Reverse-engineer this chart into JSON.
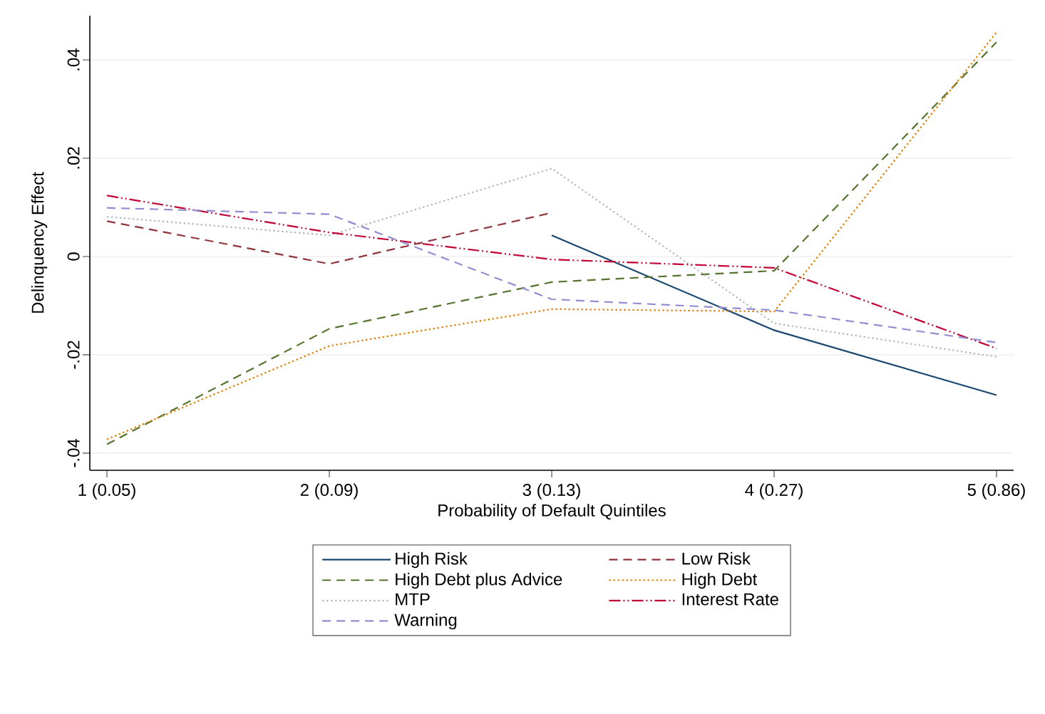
{
  "chart_data": {
    "type": "line",
    "xlabel": "Probability of Default Quintiles",
    "ylabel": "Delinquency Effect",
    "categories": [
      "1 (0.05)",
      "2 (0.09)",
      "3 (0.13)",
      "4 (0.27)",
      "5 (0.86)"
    ],
    "ylim": [
      -0.0435,
      0.049
    ],
    "yticks": [
      {
        "value": -0.04,
        "label": "-.04"
      },
      {
        "value": -0.02,
        "label": "-.02"
      },
      0,
      {
        "value": 0.02,
        "label": ".02"
      },
      {
        "value": 0.04,
        "label": ".04"
      }
    ],
    "grid": "y",
    "legend": "bottom",
    "marker": "none",
    "series": [
      {
        "name": "High Risk",
        "color": "#1a476f",
        "line_style": "solid",
        "values": [
          null,
          null,
          0.0043,
          -0.015,
          -0.0282
        ]
      },
      {
        "name": "Low Risk",
        "color": "#90353b",
        "line_style": "dashed",
        "values": [
          0.0072,
          -0.0015,
          0.0089,
          null,
          null
        ]
      },
      {
        "name": "High Debt plus Advice",
        "color": "#55752f",
        "line_style": "dashed",
        "values": [
          -0.0382,
          -0.0147,
          -0.0052,
          -0.0029,
          0.0436
        ]
      },
      {
        "name": "High Debt",
        "color": "#e37e00",
        "line_style": "dotted",
        "values": [
          -0.0372,
          -0.0182,
          -0.0107,
          -0.0112,
          0.0456
        ]
      },
      {
        "name": "MTP",
        "color": "#b0bcbc",
        "line_style": "dotted",
        "values": [
          0.0081,
          0.0043,
          0.0179,
          -0.0136,
          -0.0204
        ]
      },
      {
        "name": "Interest Rate",
        "color": "#c10534",
        "line_style": "dashdot",
        "values": [
          0.0124,
          0.0049,
          -0.0006,
          -0.0023,
          -0.0187
        ]
      },
      {
        "name": "Warning",
        "color": "#938dd2",
        "line_style": "dashed",
        "values": [
          0.0099,
          0.0086,
          -0.0087,
          -0.0109,
          -0.0175
        ]
      }
    ]
  }
}
